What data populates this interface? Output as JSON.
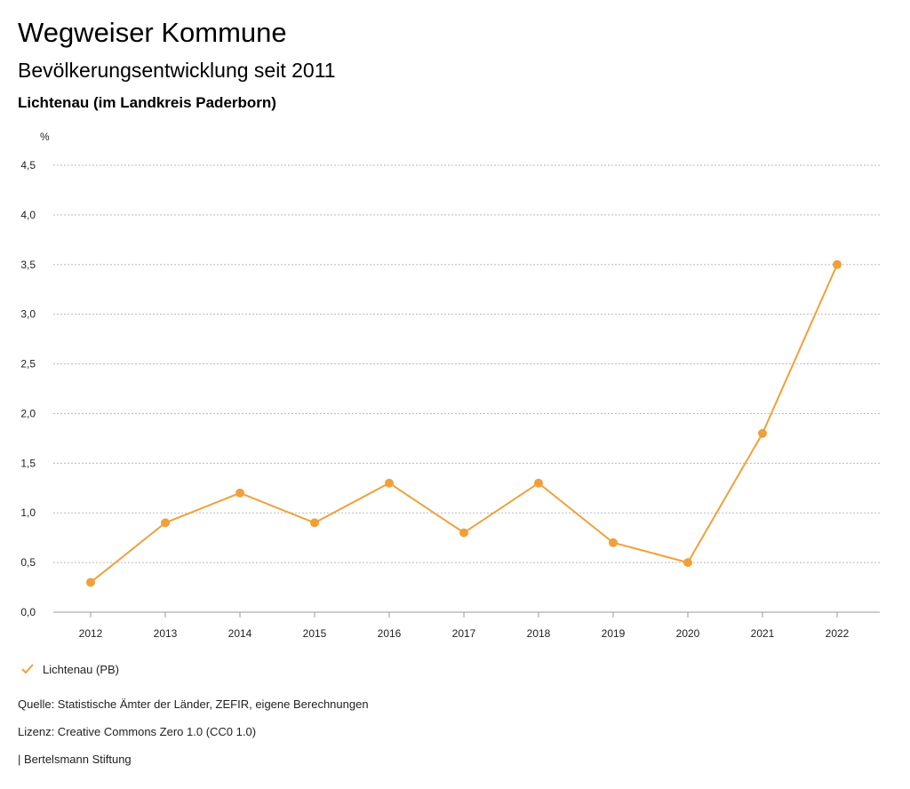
{
  "header": {
    "title": "Wegweiser Kommune",
    "subtitle": "Bevölkerungsentwicklung seit 2011",
    "region": "Lichtenau (im Landkreis Paderborn)"
  },
  "chart_data": {
    "type": "line",
    "ylabel": "%",
    "xlabel": "",
    "categories": [
      "2012",
      "2013",
      "2014",
      "2015",
      "2016",
      "2017",
      "2018",
      "2019",
      "2020",
      "2021",
      "2022"
    ],
    "series": [
      {
        "name": "Lichtenau (PB)",
        "color": "#f0a03a",
        "values": [
          0.3,
          0.9,
          1.2,
          0.9,
          1.3,
          0.8,
          1.3,
          0.7,
          0.5,
          1.8,
          3.5
        ]
      }
    ],
    "ylim": [
      0,
      4.5
    ],
    "yticks": [
      "0,0",
      "0,5",
      "1,0",
      "1,5",
      "2,0",
      "2,5",
      "3,0",
      "3,5",
      "4,0",
      "4,5"
    ],
    "grid": true,
    "legend": "bottom-left"
  },
  "legend": {
    "icon": "check-icon",
    "label": "Lichtenau (PB)"
  },
  "footer": {
    "source": "Quelle: Statistische Ämter der Länder, ZEFIR, eigene Berechnungen",
    "license": "Lizenz: Creative Commons Zero 1.0 (CC0 1.0)",
    "publisher": "| Bertelsmann Stiftung"
  }
}
